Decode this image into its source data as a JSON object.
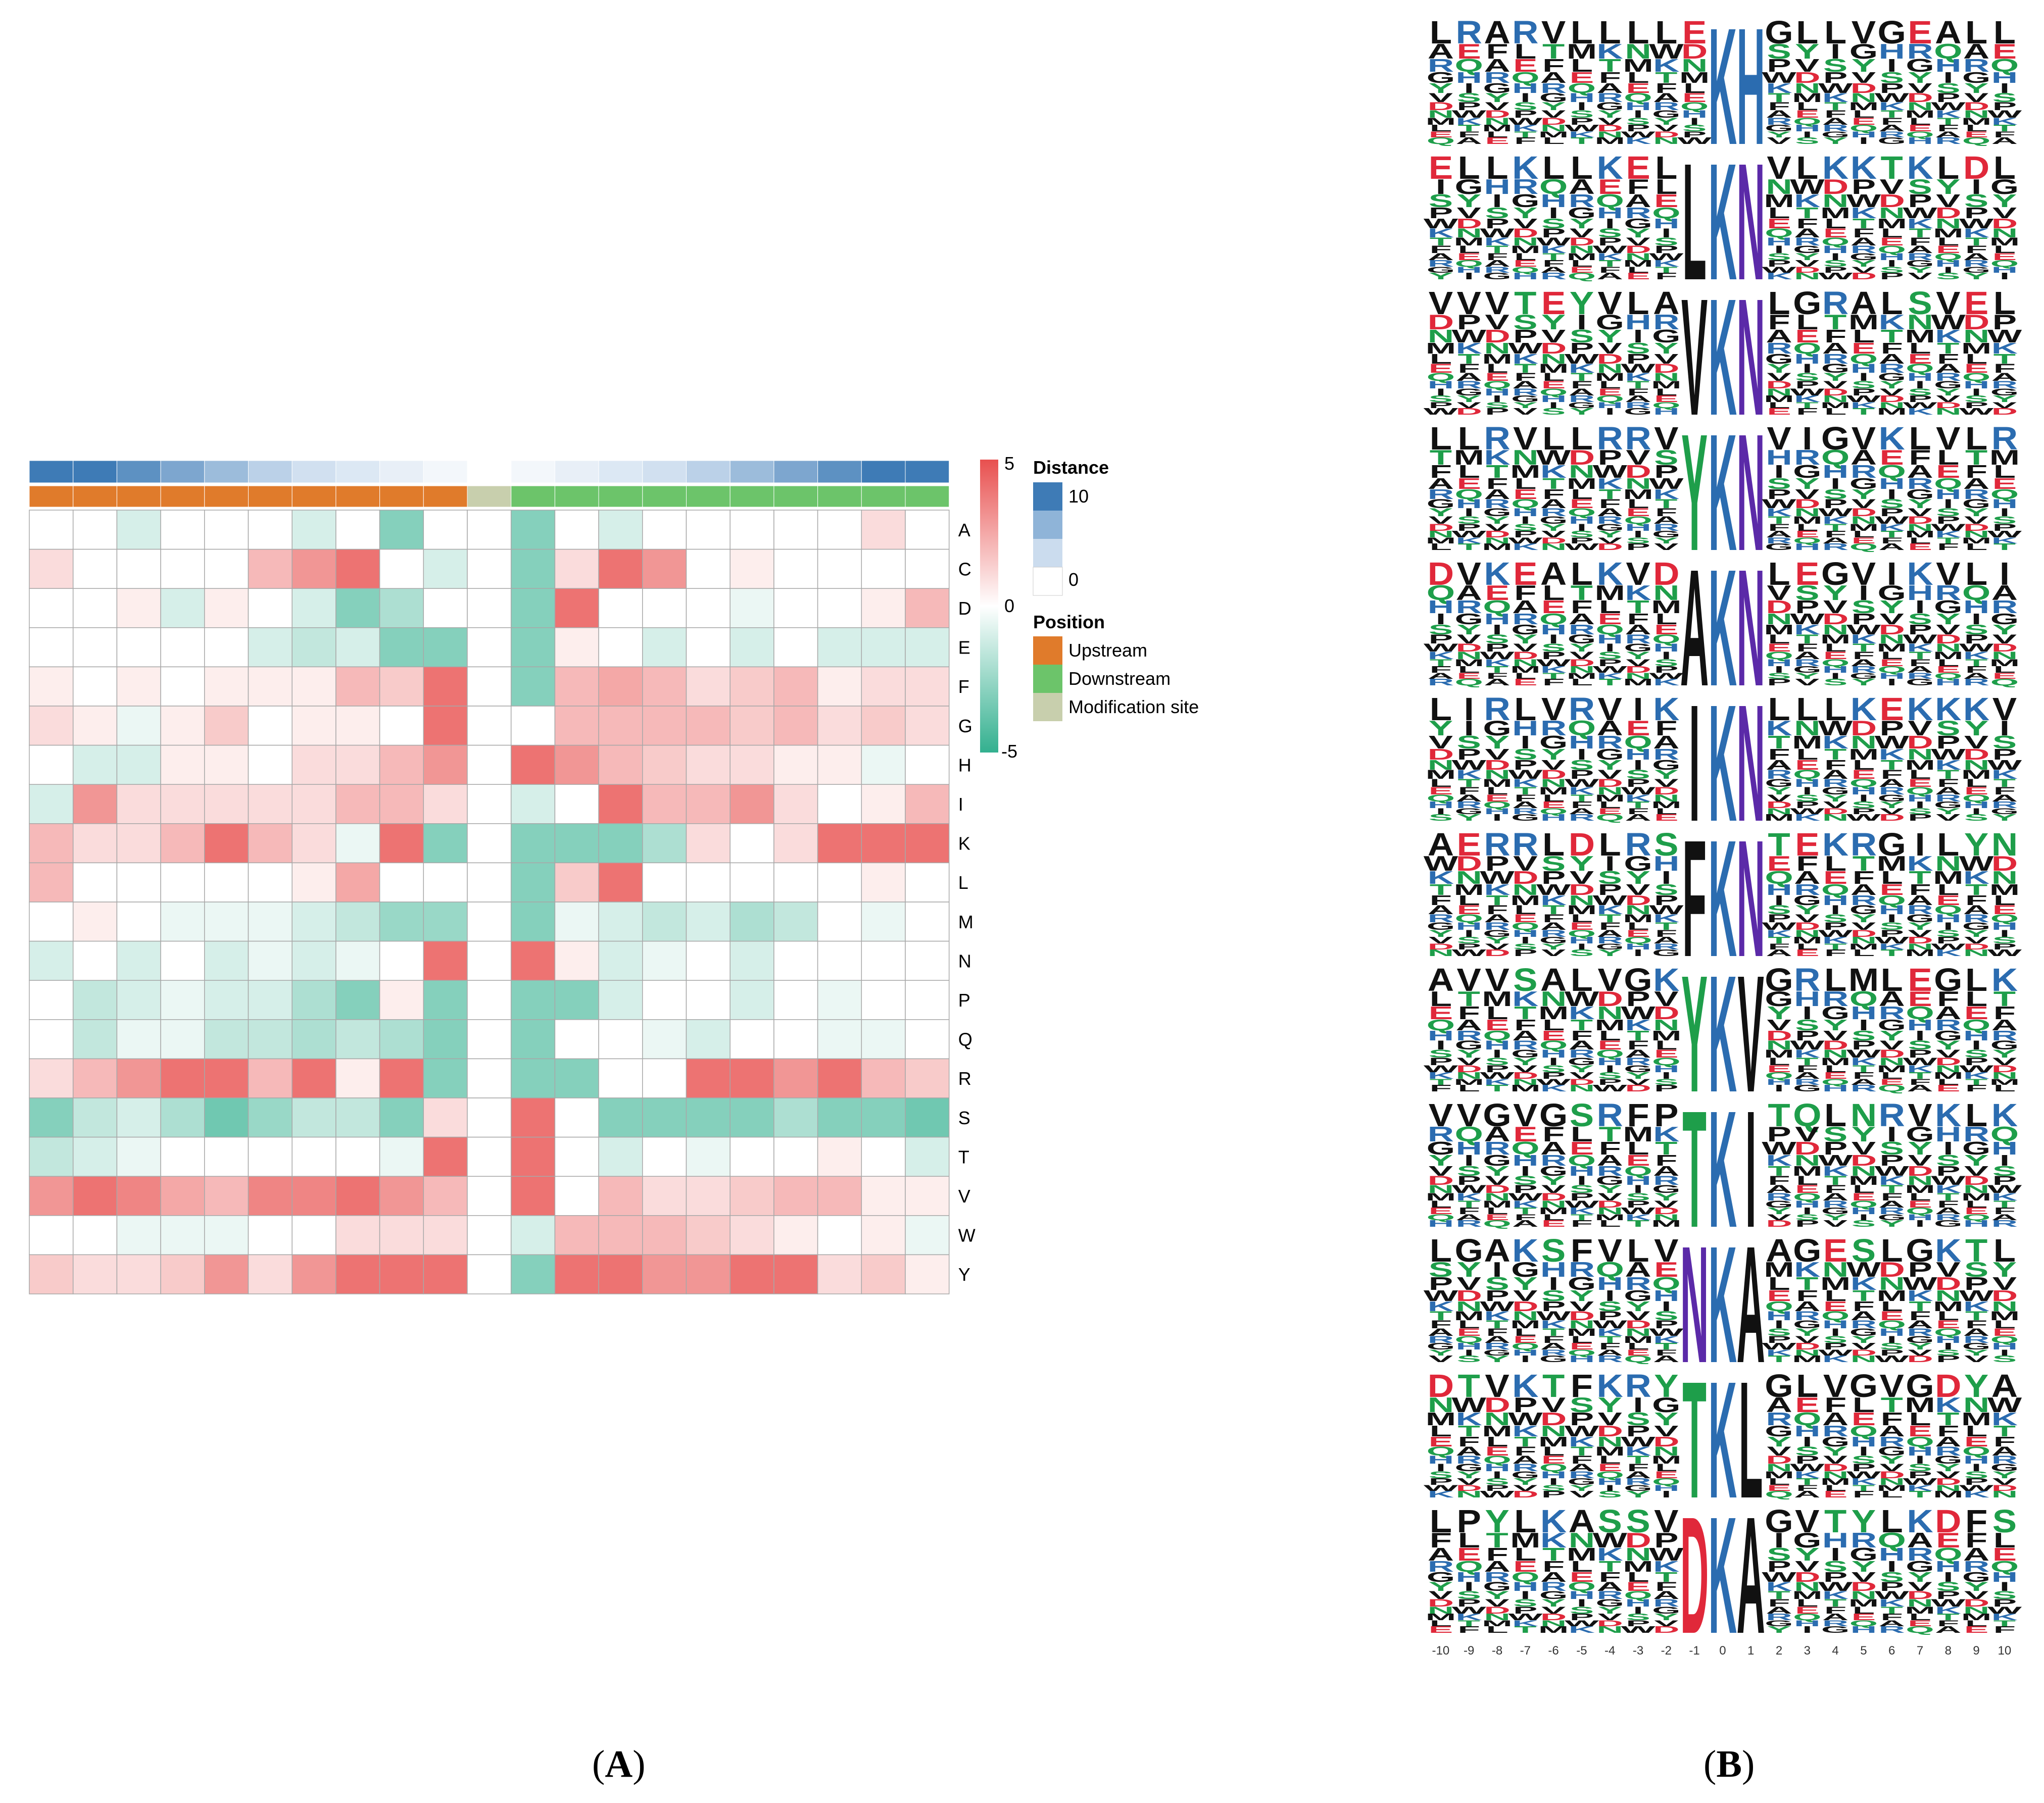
{
  "panel_labels": {
    "a": "A",
    "b": "B"
  },
  "colors": {
    "high": "#e8504f",
    "mid": "#ffffff",
    "low": "#33b08f",
    "upstream": "#e07b2b",
    "downstream": "#6cc46a",
    "modsite": "#c8cfad",
    "dist_high": "#3e7bb6",
    "dist_mid": "#8fb4d8",
    "dist_low": "#cbdcee",
    "dist_zero": "#ffffff",
    "aa_black": "#111111",
    "aa_blue": "#2b6cb0",
    "aa_green": "#1e9e4a",
    "aa_red": "#e0283a",
    "aa_purple": "#5b2aa8"
  },
  "chart_data": [
    {
      "type": "heatmap",
      "title": "",
      "rows": [
        "A",
        "C",
        "D",
        "E",
        "F",
        "G",
        "H",
        "I",
        "K",
        "L",
        "M",
        "N",
        "P",
        "Q",
        "R",
        "S",
        "T",
        "V",
        "W",
        "Y"
      ],
      "distance_row": [
        10,
        9,
        8,
        7,
        6,
        5,
        4,
        3,
        2,
        1,
        0,
        1,
        2,
        3,
        4,
        5,
        6,
        7,
        8,
        9,
        10
      ],
      "position_row": [
        "up",
        "up",
        "up",
        "up",
        "up",
        "up",
        "up",
        "up",
        "up",
        "up",
        "mod",
        "down",
        "down",
        "down",
        "down",
        "down",
        "down",
        "down",
        "down",
        "down",
        "down"
      ],
      "values": [
        [
          0,
          0,
          -1,
          0,
          0,
          0,
          -1,
          0,
          -3,
          0,
          0,
          -3,
          0,
          -1,
          0,
          0,
          0,
          0,
          0,
          1,
          0
        ],
        [
          1,
          0,
          0,
          0,
          0,
          2,
          3,
          4,
          0,
          -1,
          0,
          -3,
          1,
          4,
          3,
          0,
          0.5,
          0,
          0,
          0,
          0
        ],
        [
          0,
          0,
          0.5,
          -1,
          0.5,
          0,
          -1,
          -3,
          -2,
          0,
          0,
          -3,
          4,
          0,
          0,
          0,
          -0.5,
          0,
          0,
          0.5,
          2
        ],
        [
          0,
          0,
          0,
          0,
          0,
          -1,
          -1.5,
          -1,
          -3,
          -3,
          0,
          -3,
          0.5,
          0,
          -1,
          0,
          -1,
          0,
          -1,
          -1,
          -1
        ],
        [
          0.5,
          0,
          0.5,
          0,
          0.5,
          0.5,
          0.5,
          2,
          1.5,
          4,
          0,
          -3,
          2,
          2.5,
          2,
          1,
          1.5,
          2,
          0.5,
          1,
          1
        ],
        [
          1,
          0.5,
          -0.5,
          0.5,
          1.5,
          0,
          0.5,
          0.5,
          0,
          4,
          0,
          0,
          2,
          2,
          2,
          2,
          1.5,
          2,
          1,
          1.5,
          1
        ],
        [
          0,
          -1,
          -1,
          0.5,
          0.5,
          0,
          1,
          1,
          2,
          3,
          0,
          4,
          3,
          2,
          1.5,
          1,
          1,
          0.5,
          0.5,
          -0.5,
          0
        ],
        [
          -1,
          3,
          1,
          1,
          1,
          1,
          1,
          2,
          2,
          1,
          0,
          -1,
          0,
          4,
          2,
          2,
          3,
          1,
          0,
          0.5,
          2
        ],
        [
          2,
          1,
          1,
          2,
          4,
          2,
          1,
          -0.5,
          4,
          -3,
          0,
          -3,
          -3,
          -3,
          -2,
          1,
          0,
          1,
          4,
          4,
          4
        ],
        [
          2,
          0,
          0,
          0,
          0,
          0,
          0.5,
          2.5,
          0,
          0,
          0,
          -3,
          1.5,
          4,
          0,
          0,
          0,
          0,
          0,
          0.5,
          0
        ],
        [
          0,
          0.5,
          0,
          -0.5,
          -0.5,
          -0.5,
          -1,
          -1.5,
          -2.5,
          -2.5,
          0,
          -3,
          -0.5,
          -1,
          -1.5,
          -1,
          -2,
          -1.5,
          0,
          -0.5,
          0
        ],
        [
          -1,
          0,
          -1,
          0,
          -1,
          -0.5,
          -1,
          -0.5,
          0,
          4,
          0,
          4,
          0.5,
          -1,
          -0.5,
          0,
          -1,
          0,
          0,
          0,
          0
        ],
        [
          0,
          -1.5,
          -1,
          -0.5,
          -1,
          -1,
          -2,
          -3,
          0.5,
          -3,
          0,
          -3,
          -3,
          -1,
          0,
          0,
          -1,
          0,
          -0.5,
          0,
          0
        ],
        [
          0,
          -1.5,
          -0.5,
          -0.5,
          -1.5,
          -1.5,
          -2,
          -1.5,
          -2,
          -3,
          0,
          -3,
          0,
          0,
          -0.5,
          -1,
          0,
          0,
          -0.5,
          -0.5,
          0
        ],
        [
          1,
          2,
          3,
          4,
          4,
          2,
          4,
          0.5,
          4,
          -3,
          0,
          -3,
          -3,
          0,
          0,
          4,
          4,
          3,
          4,
          2,
          1.5
        ],
        [
          -3,
          -1.5,
          -1,
          -2,
          -3.5,
          -2.5,
          -1.5,
          -1.5,
          -3,
          1,
          0,
          4,
          0,
          -3,
          -3,
          -3,
          -3,
          -2,
          -3,
          -3,
          -3.5
        ],
        [
          -1.5,
          -1,
          -0.5,
          0,
          0,
          0,
          0,
          0,
          -0.5,
          4,
          0,
          4,
          0,
          -1,
          0,
          -0.5,
          0,
          0,
          0.5,
          0,
          -1
        ],
        [
          3,
          4,
          3.5,
          2.5,
          2,
          3.5,
          3.5,
          4,
          3,
          2,
          0,
          4,
          0,
          2,
          1,
          1,
          1.5,
          2,
          2,
          0.5,
          0.5
        ],
        [
          0,
          0,
          -0.5,
          -0.5,
          -0.5,
          0,
          0,
          1,
          1,
          1,
          0,
          -1,
          2,
          2,
          2,
          1.5,
          1,
          0.5,
          0,
          0.5,
          -0.5
        ],
        [
          1.5,
          1,
          1,
          1.5,
          3,
          1,
          3,
          4,
          4,
          4,
          0,
          -3,
          4,
          4,
          3,
          3,
          4,
          4,
          1,
          1.5,
          0.5
        ]
      ],
      "colorbar": {
        "min": -5,
        "max": 5,
        "ticks": [
          "5",
          "0",
          "-5"
        ]
      },
      "legend": {
        "distance_title": "Distance",
        "distance_ticks": [
          "10",
          "0"
        ],
        "position_title": "Position",
        "position_items": [
          "Upstream",
          "Downstream",
          "Modification site"
        ]
      }
    },
    {
      "type": "sequence-logo",
      "x_ticks": [
        "-10",
        "-9",
        "-8",
        "-7",
        "-6",
        "-5",
        "-4",
        "-3",
        "-2",
        "-1",
        "0",
        "1",
        "2",
        "3",
        "4",
        "5",
        "6",
        "7",
        "8",
        "9",
        "10"
      ],
      "motifs": [
        {
          "top": "LRARVLLLLEKHGLLVGEALL",
          "fixed": [
            "K",
            "H"
          ],
          "fixed_pos": [
            0,
            1
          ]
        },
        {
          "top": "ELLKLLKELLKNVLKKTKLDL",
          "fixed": [
            "L",
            "K",
            "N"
          ],
          "fixed_pos": [
            -1,
            0,
            1
          ]
        },
        {
          "top": "VVVTEYVLAVKNLGRALSVEL",
          "fixed": [
            "V",
            "K",
            "N"
          ],
          "fixed_pos": [
            -1,
            0,
            1
          ]
        },
        {
          "top": "LLRVLLRRVYKNVIGVKLVLR",
          "fixed": [
            "Y",
            "K",
            "N"
          ],
          "fixed_pos": [
            -1,
            0,
            1
          ]
        },
        {
          "top": "DVKEALKVDAKNLEGVIKVLI",
          "fixed": [
            "A",
            "K",
            "N"
          ],
          "fixed_pos": [
            -1,
            0,
            1
          ]
        },
        {
          "top": "LIRLVRVIKIKNLLLKEKKKV",
          "fixed": [
            "I",
            "K",
            "N"
          ],
          "fixed_pos": [
            -1,
            0,
            1
          ]
        },
        {
          "top": "AERRLDLRSFKNTEKRGILYN",
          "fixed": [
            "F",
            "K",
            "N"
          ],
          "fixed_pos": [
            -1,
            0,
            1
          ]
        },
        {
          "top": "AVVSALVGKYKVGRLMLEGLK",
          "fixed": [
            "Y",
            "K",
            "V"
          ],
          "fixed_pos": [
            -1,
            0,
            1
          ]
        },
        {
          "top": "VVGVGSRFPTKITQLNRVKLK",
          "fixed": [
            "T",
            "K",
            "I"
          ],
          "fixed_pos": [
            -1,
            0,
            1
          ]
        },
        {
          "top": "LGAKSFVLVNKAAGESLGKTL",
          "fixed": [
            "N",
            "K",
            "A"
          ],
          "fixed_pos": [
            -1,
            0,
            1
          ]
        },
        {
          "top": "DTVKTFKRYTKLGLVGVGDYA",
          "fixed": [
            "T",
            "K",
            "L"
          ],
          "fixed_pos": [
            -1,
            0,
            1
          ]
        },
        {
          "top": "LPYLKASSVDKAGVTYLKDFS",
          "fixed": [
            "D",
            "K",
            "A"
          ],
          "fixed_pos": [
            -1,
            0,
            1
          ]
        }
      ]
    }
  ]
}
